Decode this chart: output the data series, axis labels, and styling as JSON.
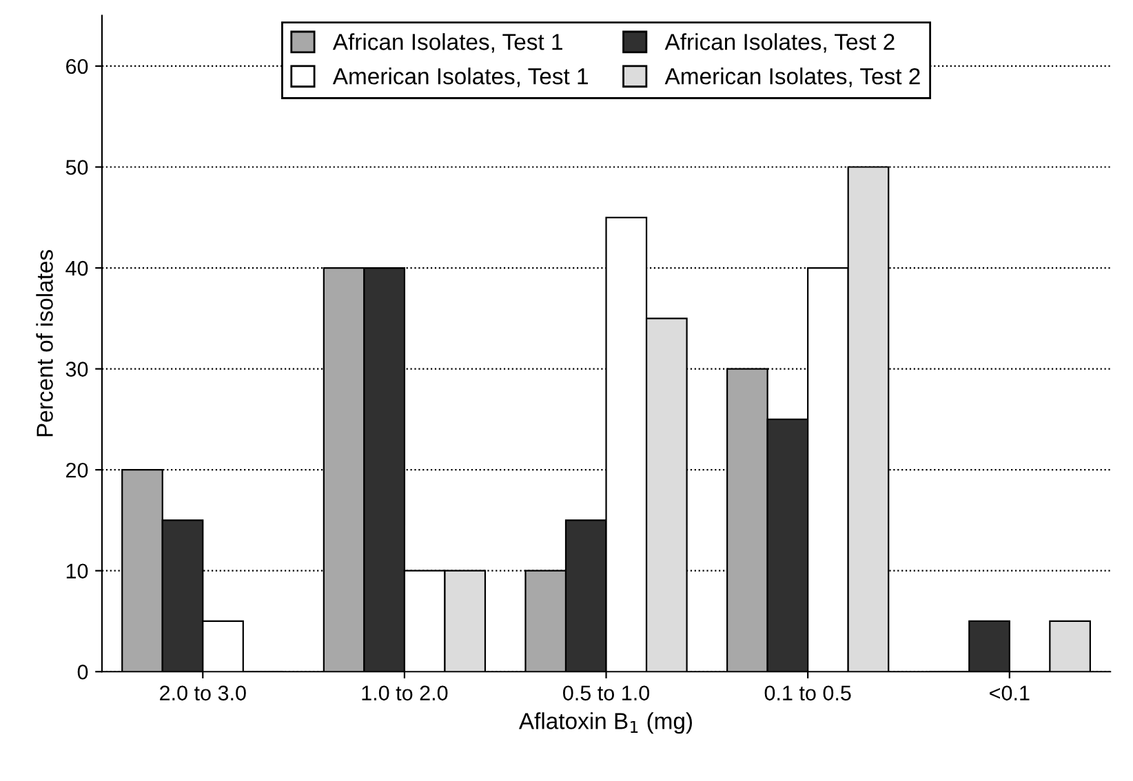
{
  "chart_data": {
    "type": "bar",
    "xlabel": "Aflatoxin B$_{1}$ (mg)",
    "ylabel": "Percent of isolates",
    "categories": [
      "2.0 to 3.0",
      "1.0 to 2.0",
      "0.5 to 1.0",
      "0.1 to 0.5",
      "<0.1"
    ],
    "series": [
      {
        "name": "African Isolates, Test 1",
        "color": "#a8a8a8",
        "values": [
          20,
          40,
          10,
          30,
          0
        ]
      },
      {
        "name": "African Isolates, Test 2",
        "color": "#303030",
        "values": [
          15,
          40,
          15,
          25,
          5
        ]
      },
      {
        "name": "American Isolates, Test 1",
        "color": "#ffffff",
        "values": [
          5,
          10,
          45,
          40,
          0
        ]
      },
      {
        "name": "American Isolates, Test 2",
        "color": "#dcdcdc",
        "values": [
          0,
          10,
          35,
          50,
          5
        ]
      }
    ],
    "ylim": [
      0,
      65
    ],
    "yticks": [
      0,
      10,
      20,
      30,
      40,
      50,
      60
    ],
    "grid": "y",
    "legend": "top",
    "line_style": "dotted"
  }
}
